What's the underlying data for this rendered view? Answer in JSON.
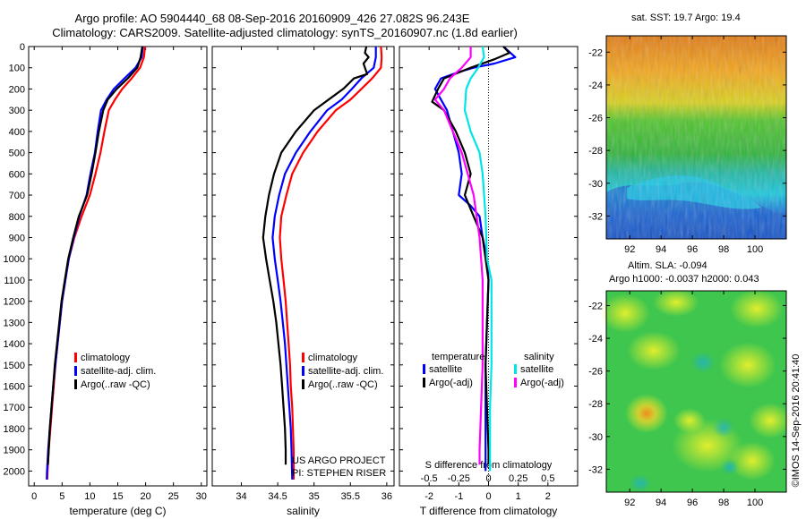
{
  "header": {
    "title": "Argo profile: AO 5904440_68 08-Sep-2016 20160909_426 27.082S 96.243E",
    "subtitle": "Climatology: CARS2009. Satellite-adjusted climatology: synTS_20160907.nc (1.8d earlier)"
  },
  "maps": {
    "sst_title": "sat. SST: 19.7 Argo: 19.4",
    "sla_title1": "Altim. SLA: -0.094",
    "sla_title2": "Argo h1000: -0.0037 h2000: 0.043",
    "lat_ticks": [
      "-22",
      "-24",
      "-26",
      "-28",
      "-30",
      "-32"
    ],
    "lon_ticks": [
      "92",
      "94",
      "96",
      "98",
      "100"
    ],
    "credit": "©IMOS 14-Sep-2016 20:41:40"
  },
  "colors": {
    "climatology": "#ff0000",
    "satellite": "#0000ff",
    "argo": "#000000",
    "sat_diff_s": "#00e5e5",
    "argo_diff_s": "#ff00ff"
  },
  "chart_data": [
    {
      "type": "line",
      "xlabel": "temperature (deg C)",
      "ylabel": "",
      "xlim": [
        -1,
        31
      ],
      "ylim": [
        2070,
        0
      ],
      "xticks": [
        "0",
        "5",
        "10",
        "15",
        "20",
        "25",
        "30"
      ],
      "yticks": [
        "0",
        "100",
        "200",
        "300",
        "400",
        "500",
        "600",
        "700",
        "800",
        "900",
        "1000",
        "1100",
        "1200",
        "1300",
        "1400",
        "1500",
        "1600",
        "1700",
        "1800",
        "1900",
        "2000"
      ],
      "legend": [
        "climatology",
        "satellite-adj. clim.",
        "Argo(..raw -QC)"
      ],
      "series": [
        {
          "name": "climatology",
          "color": "#ff0000",
          "points": [
            [
              19.9,
              0
            ],
            [
              19.7,
              50
            ],
            [
              19.0,
              100
            ],
            [
              17.5,
              150
            ],
            [
              15.8,
              200
            ],
            [
              14.5,
              250
            ],
            [
              13.4,
              300
            ],
            [
              12.6,
              400
            ],
            [
              11.9,
              500
            ],
            [
              11.0,
              600
            ],
            [
              10.0,
              700
            ],
            [
              8.5,
              800
            ],
            [
              7.2,
              900
            ],
            [
              6.2,
              1000
            ],
            [
              5.6,
              1100
            ],
            [
              5.0,
              1200
            ],
            [
              4.6,
              1300
            ],
            [
              4.2,
              1400
            ],
            [
              3.8,
              1500
            ],
            [
              3.5,
              1600
            ],
            [
              3.2,
              1700
            ],
            [
              2.9,
              1800
            ],
            [
              2.6,
              1900
            ],
            [
              2.4,
              2000
            ],
            [
              2.35,
              2040
            ]
          ]
        },
        {
          "name": "satellite-adj. clim.",
          "color": "#0000ff",
          "points": [
            [
              19.5,
              0
            ],
            [
              19.3,
              50
            ],
            [
              18.2,
              100
            ],
            [
              16.2,
              150
            ],
            [
              14.3,
              200
            ],
            [
              13.0,
              250
            ],
            [
              12.0,
              300
            ],
            [
              11.4,
              400
            ],
            [
              10.9,
              500
            ],
            [
              10.1,
              600
            ],
            [
              9.4,
              700
            ],
            [
              8.1,
              800
            ],
            [
              7.1,
              900
            ],
            [
              6.2,
              1000
            ],
            [
              5.6,
              1100
            ],
            [
              5.0,
              1200
            ],
            [
              4.6,
              1300
            ],
            [
              4.2,
              1400
            ],
            [
              3.8,
              1500
            ],
            [
              3.4,
              1600
            ],
            [
              3.1,
              1700
            ],
            [
              2.8,
              1800
            ],
            [
              2.5,
              1900
            ],
            [
              2.3,
              2000
            ],
            [
              2.25,
              2040
            ]
          ]
        },
        {
          "name": "Argo(..raw -QC)",
          "color": "#000000",
          "points": [
            [
              19.4,
              0
            ],
            [
              19.1,
              50
            ],
            [
              18.5,
              100
            ],
            [
              16.8,
              150
            ],
            [
              14.8,
              200
            ],
            [
              13.2,
              250
            ],
            [
              12.4,
              300
            ],
            [
              11.6,
              400
            ],
            [
              11.0,
              500
            ],
            [
              10.3,
              600
            ],
            [
              9.5,
              700
            ],
            [
              8.0,
              800
            ],
            [
              7.0,
              900
            ],
            [
              6.1,
              1000
            ],
            [
              5.5,
              1100
            ],
            [
              4.9,
              1200
            ],
            [
              4.5,
              1300
            ],
            [
              4.1,
              1400
            ],
            [
              3.7,
              1500
            ],
            [
              3.4,
              1600
            ],
            [
              3.1,
              1700
            ],
            [
              2.8,
              1800
            ],
            [
              2.6,
              1900
            ],
            [
              2.45,
              1970
            ]
          ]
        }
      ]
    },
    {
      "type": "line",
      "xlabel": "salinity",
      "ylabel": "",
      "xlim": [
        33.6,
        36.1
      ],
      "ylim": [
        2070,
        0
      ],
      "xticks": [
        "34",
        "34.5",
        "35",
        "35.5",
        "36"
      ],
      "legend": [
        "climatology",
        "satellite-adj. clim.",
        "Argo(..raw -QC)"
      ],
      "annotation": [
        "US ARGO PROJECT",
        "PI: STEPHEN RISER"
      ],
      "series": [
        {
          "name": "climatology",
          "color": "#ff0000",
          "points": [
            [
              35.92,
              0
            ],
            [
              35.93,
              50
            ],
            [
              35.92,
              100
            ],
            [
              35.8,
              150
            ],
            [
              35.65,
              200
            ],
            [
              35.5,
              250
            ],
            [
              35.3,
              300
            ],
            [
              35.05,
              400
            ],
            [
              34.85,
              500
            ],
            [
              34.7,
              600
            ],
            [
              34.62,
              700
            ],
            [
              34.55,
              800
            ],
            [
              34.53,
              900
            ],
            [
              34.55,
              1000
            ],
            [
              34.58,
              1100
            ],
            [
              34.61,
              1200
            ],
            [
              34.63,
              1300
            ],
            [
              34.65,
              1400
            ],
            [
              34.67,
              1500
            ],
            [
              34.68,
              1600
            ],
            [
              34.7,
              1700
            ],
            [
              34.71,
              1800
            ],
            [
              34.72,
              1900
            ],
            [
              34.72,
              2040
            ]
          ]
        },
        {
          "name": "satellite-adj. clim.",
          "color": "#0000ff",
          "points": [
            [
              35.85,
              0
            ],
            [
              35.85,
              50
            ],
            [
              35.82,
              100
            ],
            [
              35.65,
              150
            ],
            [
              35.52,
              200
            ],
            [
              35.38,
              250
            ],
            [
              35.18,
              300
            ],
            [
              34.95,
              400
            ],
            [
              34.75,
              500
            ],
            [
              34.6,
              600
            ],
            [
              34.52,
              700
            ],
            [
              34.46,
              800
            ],
            [
              34.43,
              900
            ],
            [
              34.46,
              1000
            ],
            [
              34.5,
              1100
            ],
            [
              34.54,
              1200
            ],
            [
              34.57,
              1300
            ],
            [
              34.6,
              1400
            ],
            [
              34.62,
              1500
            ],
            [
              34.64,
              1600
            ],
            [
              34.66,
              1700
            ],
            [
              34.68,
              1800
            ],
            [
              34.69,
              1900
            ],
            [
              34.7,
              2040
            ]
          ]
        },
        {
          "name": "Argo(..raw -QC)",
          "color": "#000000",
          "points": [
            [
              35.72,
              0
            ],
            [
              35.7,
              30
            ],
            [
              35.75,
              50
            ],
            [
              35.68,
              80
            ],
            [
              35.73,
              130
            ],
            [
              35.55,
              150
            ],
            [
              35.4,
              200
            ],
            [
              35.2,
              250
            ],
            [
              35.0,
              300
            ],
            [
              34.75,
              400
            ],
            [
              34.55,
              500
            ],
            [
              34.45,
              600
            ],
            [
              34.38,
              700
            ],
            [
              34.33,
              800
            ],
            [
              34.3,
              900
            ],
            [
              34.34,
              1000
            ],
            [
              34.39,
              1100
            ],
            [
              34.44,
              1200
            ],
            [
              34.48,
              1300
            ],
            [
              34.51,
              1400
            ],
            [
              34.54,
              1500
            ],
            [
              34.56,
              1600
            ],
            [
              34.58,
              1700
            ],
            [
              34.6,
              1800
            ],
            [
              34.61,
              1900
            ],
            [
              34.61,
              1970
            ]
          ]
        }
      ]
    },
    {
      "type": "line",
      "xlabel": "T difference from climatology",
      "xlabel2": "S difference from climatology",
      "ylabel": "",
      "xlim": [
        -3,
        3
      ],
      "ylim": [
        2070,
        0
      ],
      "xticks": [
        "-2",
        "-1",
        "0",
        "1",
        "2"
      ],
      "xticks2": [
        "-0.5",
        "-0.25",
        "0",
        "0.25",
        "0.5"
      ],
      "legend_headers": [
        "temperature",
        "salinity"
      ],
      "legend": [
        "satellite",
        "Argo(-adj)",
        "satellite",
        "Argo(-adj)"
      ],
      "series": [
        {
          "name": "satellite",
          "color": "#0000ff",
          "points": [
            [
              0.5,
              0
            ],
            [
              0.9,
              50
            ],
            [
              0.2,
              80
            ],
            [
              -0.5,
              100
            ],
            [
              -1.0,
              120
            ],
            [
              -1.6,
              150
            ],
            [
              -1.8,
              200
            ],
            [
              -1.6,
              250
            ],
            [
              -1.4,
              300
            ],
            [
              -1.2,
              400
            ],
            [
              -1.0,
              500
            ],
            [
              -0.9,
              600
            ],
            [
              -1.0,
              700
            ],
            [
              -0.6,
              750
            ],
            [
              -0.3,
              800
            ],
            [
              -0.2,
              900
            ],
            [
              -0.05,
              1000
            ],
            [
              0,
              1100
            ],
            [
              -0.05,
              1300
            ],
            [
              -0.1,
              1500
            ],
            [
              -0.1,
              1700
            ],
            [
              -0.1,
              1900
            ],
            [
              -0.1,
              2000
            ]
          ]
        },
        {
          "name": "Argo(-adj)",
          "color": "#000000",
          "points": [
            [
              0.5,
              0
            ],
            [
              0.7,
              30
            ],
            [
              0.2,
              60
            ],
            [
              -0.6,
              100
            ],
            [
              -1.5,
              150
            ],
            [
              -1.7,
              200
            ],
            [
              -1.9,
              260
            ],
            [
              -1.5,
              300
            ],
            [
              -1.1,
              400
            ],
            [
              -0.8,
              500
            ],
            [
              -0.6,
              600
            ],
            [
              -0.8,
              700
            ],
            [
              -0.5,
              800
            ],
            [
              -0.2,
              900
            ],
            [
              -0.1,
              1000
            ],
            [
              0.0,
              1100
            ],
            [
              -0.05,
              1300
            ],
            [
              -0.1,
              1500
            ],
            [
              -0.05,
              1700
            ],
            [
              0.0,
              1900
            ],
            [
              0.0,
              1970
            ]
          ]
        },
        {
          "name": "satellite",
          "color": "#00e5e5",
          "points": [
            [
              -0.2,
              0
            ],
            [
              -0.15,
              50
            ],
            [
              -0.35,
              100
            ],
            [
              -0.6,
              150
            ],
            [
              -0.75,
              200
            ],
            [
              -0.8,
              300
            ],
            [
              -0.6,
              400
            ],
            [
              -0.3,
              500
            ],
            [
              -0.2,
              600
            ],
            [
              -0.1,
              800
            ],
            [
              -0.05,
              1000
            ],
            [
              0.1,
              1100
            ],
            [
              0.1,
              1300
            ],
            [
              0.1,
              1500
            ],
            [
              0.05,
              1700
            ],
            [
              0.05,
              1900
            ],
            [
              0.05,
              2000
            ]
          ]
        },
        {
          "name": "Argo(-adj)",
          "color": "#ff00ff",
          "points": [
            [
              -0.6,
              0
            ],
            [
              -0.6,
              50
            ],
            [
              -0.9,
              100
            ],
            [
              -1.3,
              150
            ],
            [
              -1.5,
              200
            ],
            [
              -1.8,
              250
            ],
            [
              -1.5,
              300
            ],
            [
              -1.2,
              400
            ],
            [
              -0.9,
              500
            ],
            [
              -0.7,
              600
            ],
            [
              -0.5,
              700
            ],
            [
              -0.4,
              800
            ],
            [
              -0.3,
              900
            ],
            [
              -0.25,
              1000
            ],
            [
              -0.2,
              1100
            ],
            [
              -0.2,
              1300
            ],
            [
              -0.2,
              1500
            ],
            [
              -0.25,
              1700
            ],
            [
              -0.3,
              1900
            ],
            [
              -0.3,
              1970
            ]
          ]
        }
      ]
    }
  ]
}
